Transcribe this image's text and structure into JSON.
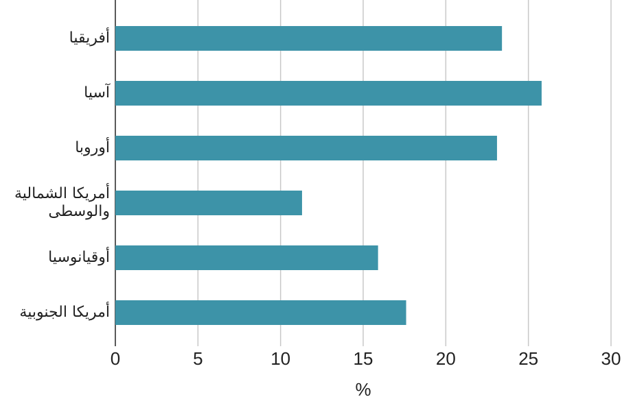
{
  "chart_data": {
    "type": "bar",
    "orientation": "horizontal",
    "categories": [
      "أفريقيا",
      "آسيا",
      "أوروبا",
      "أمريكا الشمالية\nوالوسطى",
      "أوقيانوسيا",
      "أمريكا الجنوبية"
    ],
    "values": [
      23.4,
      25.8,
      23.1,
      11.3,
      15.9,
      17.6
    ],
    "color": "#3d93a8",
    "xlabel": "%",
    "xlim": [
      0,
      30
    ],
    "xticks": [
      0,
      5,
      10,
      15,
      20,
      25,
      30
    ],
    "grid": true
  }
}
